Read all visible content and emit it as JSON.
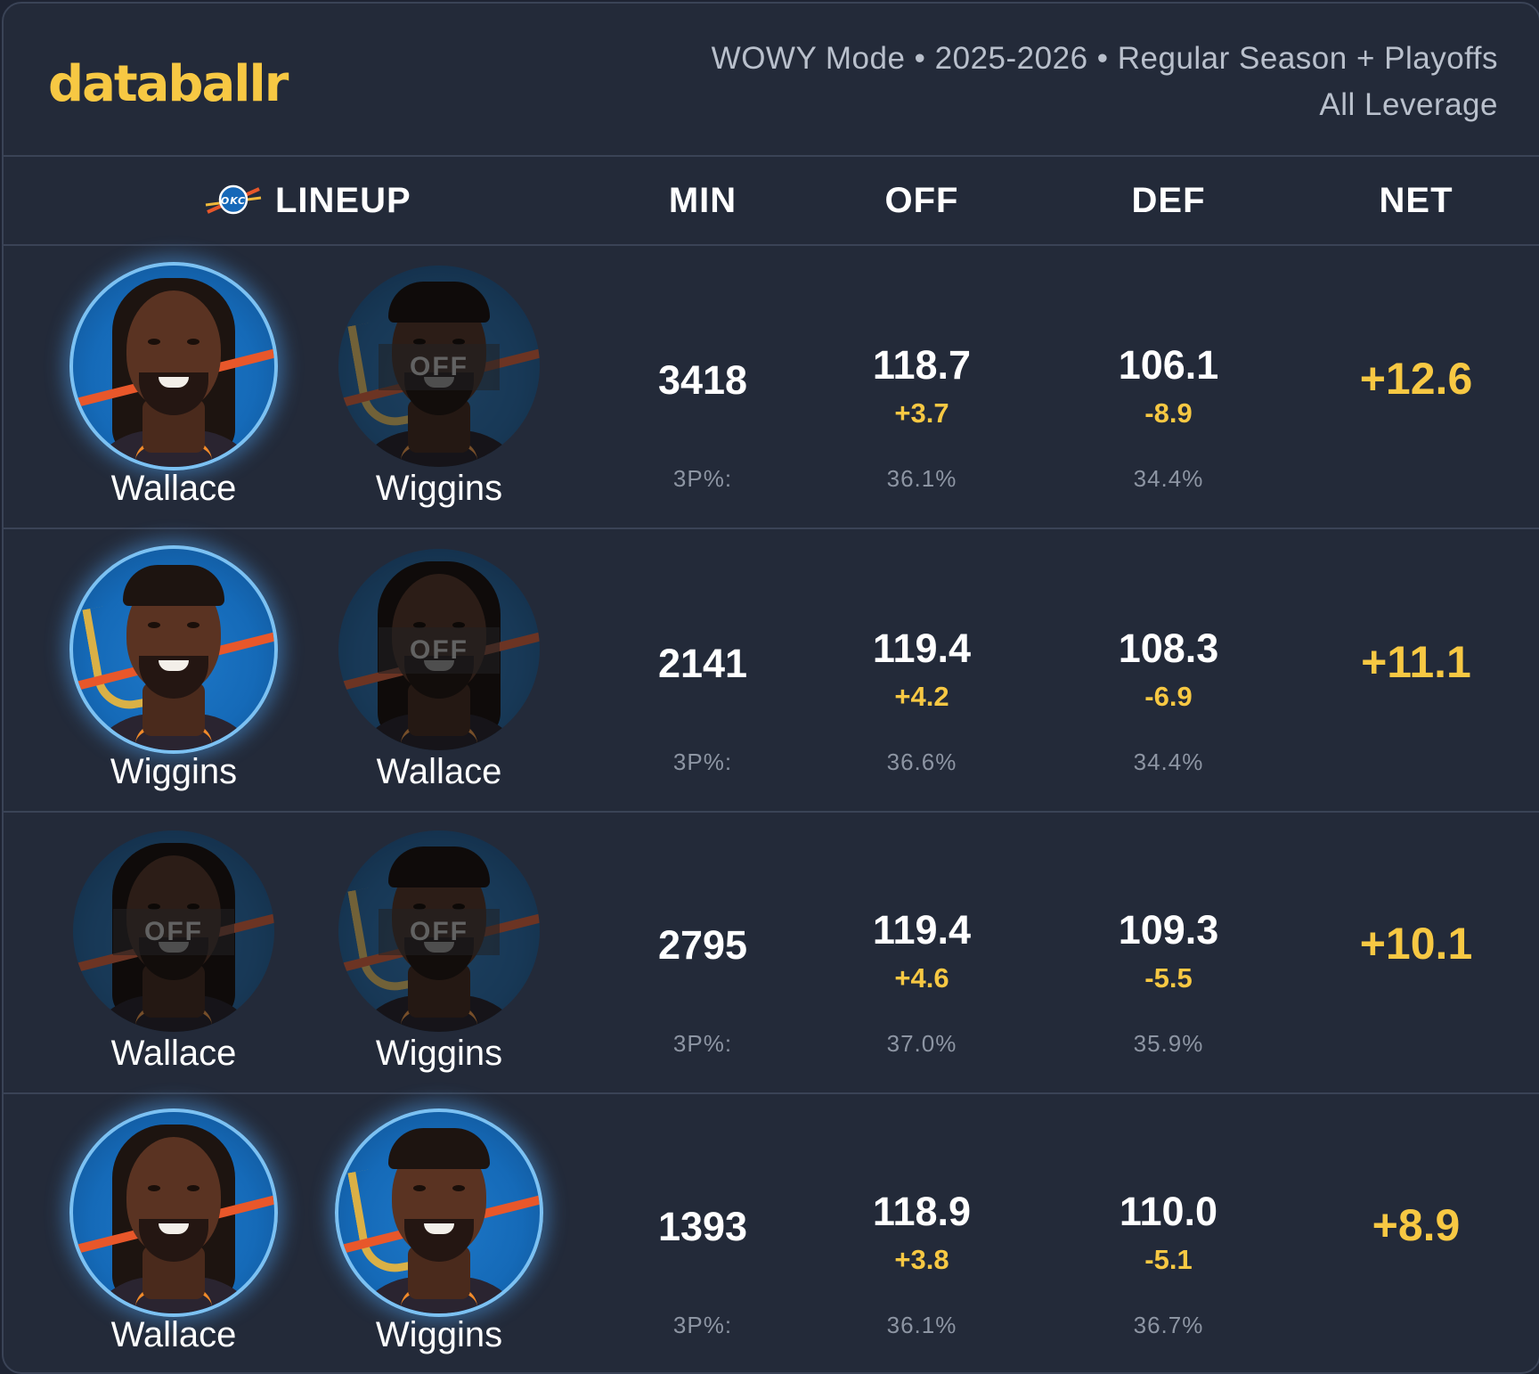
{
  "brand": {
    "logo_text": "databallr",
    "accent": "#f7c843"
  },
  "meta": {
    "line1": "WOWY Mode • 2025-2026 • Regular Season + Playoffs",
    "line2": "All Leverage"
  },
  "columns": {
    "lineup": "LINEUP",
    "min": "MIN",
    "off": "OFF",
    "def": "DEF",
    "net": "NET"
  },
  "team": {
    "abbr": "OKC"
  },
  "rows": [
    {
      "players": [
        {
          "name": "Wallace",
          "status": "on",
          "off_label": ""
        },
        {
          "name": "Wiggins",
          "status": "off",
          "off_label": "OFF"
        }
      ],
      "min": "3418",
      "off": {
        "value": "118.7",
        "diff": "+3.7",
        "p3": "36.1%"
      },
      "def": {
        "value": "106.1",
        "diff": "-8.9",
        "p3": "34.4%"
      },
      "p3_label": "3P%:",
      "net": "+12.6"
    },
    {
      "players": [
        {
          "name": "Wiggins",
          "status": "on",
          "off_label": ""
        },
        {
          "name": "Wallace",
          "status": "off",
          "off_label": "OFF"
        }
      ],
      "min": "2141",
      "off": {
        "value": "119.4",
        "diff": "+4.2",
        "p3": "36.6%"
      },
      "def": {
        "value": "108.3",
        "diff": "-6.9",
        "p3": "34.4%"
      },
      "p3_label": "3P%:",
      "net": "+11.1"
    },
    {
      "players": [
        {
          "name": "Wallace",
          "status": "off",
          "off_label": "OFF"
        },
        {
          "name": "Wiggins",
          "status": "off",
          "off_label": "OFF"
        }
      ],
      "min": "2795",
      "off": {
        "value": "119.4",
        "diff": "+4.6",
        "p3": "37.0%"
      },
      "def": {
        "value": "109.3",
        "diff": "-5.5",
        "p3": "35.9%"
      },
      "p3_label": "3P%:",
      "net": "+10.1"
    },
    {
      "players": [
        {
          "name": "Wallace",
          "status": "on",
          "off_label": ""
        },
        {
          "name": "Wiggins",
          "status": "on",
          "off_label": ""
        }
      ],
      "min": "1393",
      "off": {
        "value": "118.9",
        "diff": "+3.8",
        "p3": "36.1%"
      },
      "def": {
        "value": "110.0",
        "diff": "-5.1",
        "p3": "36.7%"
      },
      "p3_label": "3P%:",
      "net": "+8.9"
    }
  ]
}
